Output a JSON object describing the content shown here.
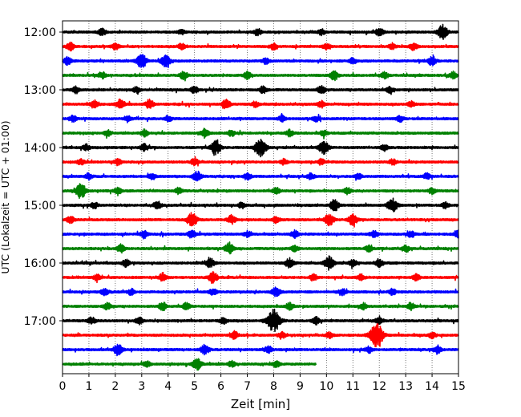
{
  "chart_data": {
    "type": "line",
    "title": "",
    "xlabel": "Zeit  [min]",
    "ylabel": "UTC (Lokalzeit = UTC + 01:00)",
    "xlim": [
      0,
      15
    ],
    "xticks": [
      0,
      1,
      2,
      3,
      4,
      5,
      6,
      7,
      8,
      9,
      10,
      11,
      12,
      13,
      14,
      15
    ],
    "xtick_labels": [
      "0",
      "1",
      "2",
      "3",
      "4",
      "5",
      "6",
      "7",
      "8",
      "9",
      "10",
      "11",
      "12",
      "13",
      "14",
      "15"
    ],
    "ytick_labels": [
      {
        "trace": 0,
        "label": "12:00"
      },
      {
        "trace": 4,
        "label": "13:00"
      },
      {
        "trace": 8,
        "label": "14:00"
      },
      {
        "trace": 12,
        "label": "15:00"
      },
      {
        "trace": 16,
        "label": "16:00"
      },
      {
        "trace": 20,
        "label": "17:00"
      }
    ],
    "vertical_grid": "dotted",
    "color_cycle": [
      "#000000",
      "#ff0000",
      "#0000ff",
      "#008000"
    ],
    "trace_minutes": 15,
    "traces": [
      {
        "start": "12:00",
        "end_min": 15,
        "bursts": [
          [
            1.5,
            0.35
          ],
          [
            4.5,
            0.25
          ],
          [
            7.4,
            0.3
          ],
          [
            9.8,
            0.3
          ],
          [
            12.0,
            0.4
          ],
          [
            14.4,
            0.7
          ]
        ]
      },
      {
        "start": "12:15",
        "end_min": 15,
        "bursts": [
          [
            0.3,
            0.4
          ],
          [
            2.0,
            0.3
          ],
          [
            4.5,
            0.3
          ],
          [
            8.0,
            0.3
          ],
          [
            10.0,
            0.3
          ],
          [
            12.5,
            0.3
          ],
          [
            13.3,
            0.35
          ]
        ]
      },
      {
        "start": "12:30",
        "end_min": 15,
        "bursts": [
          [
            0.2,
            0.4
          ],
          [
            3.0,
            0.7
          ],
          [
            3.9,
            0.6
          ],
          [
            7.7,
            0.3
          ],
          [
            11.0,
            0.3
          ],
          [
            14.0,
            0.45
          ]
        ]
      },
      {
        "start": "12:45",
        "end_min": 15,
        "bursts": [
          [
            1.5,
            0.3
          ],
          [
            4.6,
            0.4
          ],
          [
            7.0,
            0.35
          ],
          [
            10.3,
            0.45
          ],
          [
            12.2,
            0.3
          ],
          [
            14.8,
            0.3
          ]
        ]
      },
      {
        "start": "13:00",
        "end_min": 15,
        "bursts": [
          [
            0.5,
            0.3
          ],
          [
            2.8,
            0.3
          ],
          [
            5.0,
            0.35
          ],
          [
            7.6,
            0.35
          ],
          [
            9.8,
            0.4
          ],
          [
            12.4,
            0.3
          ]
        ]
      },
      {
        "start": "13:15",
        "end_min": 15,
        "bursts": [
          [
            1.2,
            0.4
          ],
          [
            2.2,
            0.5
          ],
          [
            3.3,
            0.45
          ],
          [
            6.2,
            0.45
          ],
          [
            7.3,
            0.3
          ],
          [
            9.8,
            0.35
          ],
          [
            13.2,
            0.3
          ]
        ]
      },
      {
        "start": "13:30",
        "end_min": 15,
        "bursts": [
          [
            0.4,
            0.3
          ],
          [
            2.5,
            0.3
          ],
          [
            4.0,
            0.3
          ],
          [
            8.3,
            0.3
          ],
          [
            9.6,
            0.3
          ],
          [
            12.8,
            0.3
          ]
        ]
      },
      {
        "start": "13:45",
        "end_min": 15,
        "bursts": [
          [
            1.7,
            0.3
          ],
          [
            3.1,
            0.35
          ],
          [
            5.4,
            0.45
          ],
          [
            6.4,
            0.3
          ],
          [
            8.6,
            0.3
          ],
          [
            9.9,
            0.3
          ]
        ]
      },
      {
        "start": "14:00",
        "end_min": 15,
        "bursts": [
          [
            0.9,
            0.3
          ],
          [
            3.1,
            0.35
          ],
          [
            5.8,
            0.7
          ],
          [
            7.5,
            0.85
          ],
          [
            9.9,
            0.65
          ],
          [
            12.2,
            0.3
          ]
        ]
      },
      {
        "start": "14:15",
        "end_min": 15,
        "bursts": [
          [
            0.7,
            0.3
          ],
          [
            2.1,
            0.3
          ],
          [
            5.0,
            0.35
          ],
          [
            8.4,
            0.3
          ],
          [
            9.8,
            0.3
          ],
          [
            12.5,
            0.3
          ]
        ]
      },
      {
        "start": "14:30",
        "end_min": 15,
        "bursts": [
          [
            1.0,
            0.3
          ],
          [
            3.4,
            0.3
          ],
          [
            5.1,
            0.5
          ],
          [
            7.0,
            0.35
          ],
          [
            9.4,
            0.3
          ],
          [
            11.2,
            0.3
          ],
          [
            13.8,
            0.3
          ]
        ]
      },
      {
        "start": "14:45",
        "end_min": 15,
        "bursts": [
          [
            0.7,
            0.75
          ],
          [
            2.1,
            0.3
          ],
          [
            4.4,
            0.3
          ],
          [
            8.1,
            0.3
          ],
          [
            10.8,
            0.3
          ],
          [
            14.0,
            0.3
          ]
        ]
      },
      {
        "start": "15:00",
        "end_min": 15,
        "bursts": [
          [
            1.2,
            0.3
          ],
          [
            3.6,
            0.35
          ],
          [
            6.8,
            0.3
          ],
          [
            10.3,
            0.55
          ],
          [
            12.5,
            0.7
          ],
          [
            14.5,
            0.3
          ]
        ]
      },
      {
        "start": "15:15",
        "end_min": 15,
        "bursts": [
          [
            0.3,
            0.35
          ],
          [
            4.9,
            0.7
          ],
          [
            6.4,
            0.45
          ],
          [
            8.1,
            0.3
          ],
          [
            10.1,
            0.6
          ],
          [
            11.0,
            0.55
          ]
        ]
      },
      {
        "start": "15:30",
        "end_min": 15,
        "bursts": [
          [
            3.1,
            0.35
          ],
          [
            4.9,
            0.4
          ],
          [
            7.0,
            0.3
          ],
          [
            8.8,
            0.35
          ],
          [
            11.8,
            0.35
          ],
          [
            13.2,
            0.3
          ],
          [
            15.0,
            0.35
          ]
        ]
      },
      {
        "start": "15:45",
        "end_min": 15,
        "bursts": [
          [
            2.2,
            0.4
          ],
          [
            6.3,
            0.5
          ],
          [
            8.8,
            0.3
          ],
          [
            11.6,
            0.3
          ],
          [
            13.0,
            0.3
          ]
        ]
      },
      {
        "start": "16:00",
        "end_min": 15,
        "bursts": [
          [
            2.4,
            0.35
          ],
          [
            5.6,
            0.45
          ],
          [
            8.6,
            0.5
          ],
          [
            10.1,
            0.65
          ],
          [
            11.0,
            0.35
          ],
          [
            12.0,
            0.35
          ]
        ]
      },
      {
        "start": "16:15",
        "end_min": 15,
        "bursts": [
          [
            1.3,
            0.3
          ],
          [
            3.8,
            0.4
          ],
          [
            5.7,
            0.55
          ],
          [
            9.5,
            0.3
          ],
          [
            11.3,
            0.3
          ],
          [
            13.4,
            0.3
          ]
        ]
      },
      {
        "start": "16:30",
        "end_min": 15,
        "bursts": [
          [
            1.6,
            0.35
          ],
          [
            2.6,
            0.3
          ],
          [
            5.7,
            0.3
          ],
          [
            8.1,
            0.5
          ],
          [
            10.6,
            0.3
          ],
          [
            12.5,
            0.3
          ]
        ]
      },
      {
        "start": "16:45",
        "end_min": 15,
        "bursts": [
          [
            1.7,
            0.35
          ],
          [
            3.8,
            0.4
          ],
          [
            4.7,
            0.35
          ],
          [
            8.6,
            0.35
          ],
          [
            11.4,
            0.3
          ],
          [
            13.2,
            0.35
          ]
        ]
      },
      {
        "start": "17:00",
        "end_min": 15,
        "bursts": [
          [
            1.1,
            0.35
          ],
          [
            2.9,
            0.35
          ],
          [
            6.1,
            0.3
          ],
          [
            8.0,
            1.15
          ],
          [
            9.6,
            0.35
          ],
          [
            12.0,
            0.35
          ]
        ]
      },
      {
        "start": "17:15",
        "end_min": 15,
        "bursts": [
          [
            6.5,
            0.4
          ],
          [
            8.3,
            0.35
          ],
          [
            10.1,
            0.3
          ],
          [
            11.9,
            1.2
          ],
          [
            14.0,
            0.3
          ]
        ]
      },
      {
        "start": "17:30",
        "end_min": 15,
        "bursts": [
          [
            2.1,
            0.55
          ],
          [
            5.4,
            0.5
          ],
          [
            7.8,
            0.35
          ],
          [
            11.6,
            0.3
          ],
          [
            14.2,
            0.4
          ]
        ]
      },
      {
        "start": "17:45",
        "end_min": 9.6,
        "bursts": [
          [
            3.2,
            0.3
          ],
          [
            5.1,
            0.55
          ],
          [
            6.4,
            0.3
          ],
          [
            8.1,
            0.3
          ]
        ]
      }
    ]
  }
}
